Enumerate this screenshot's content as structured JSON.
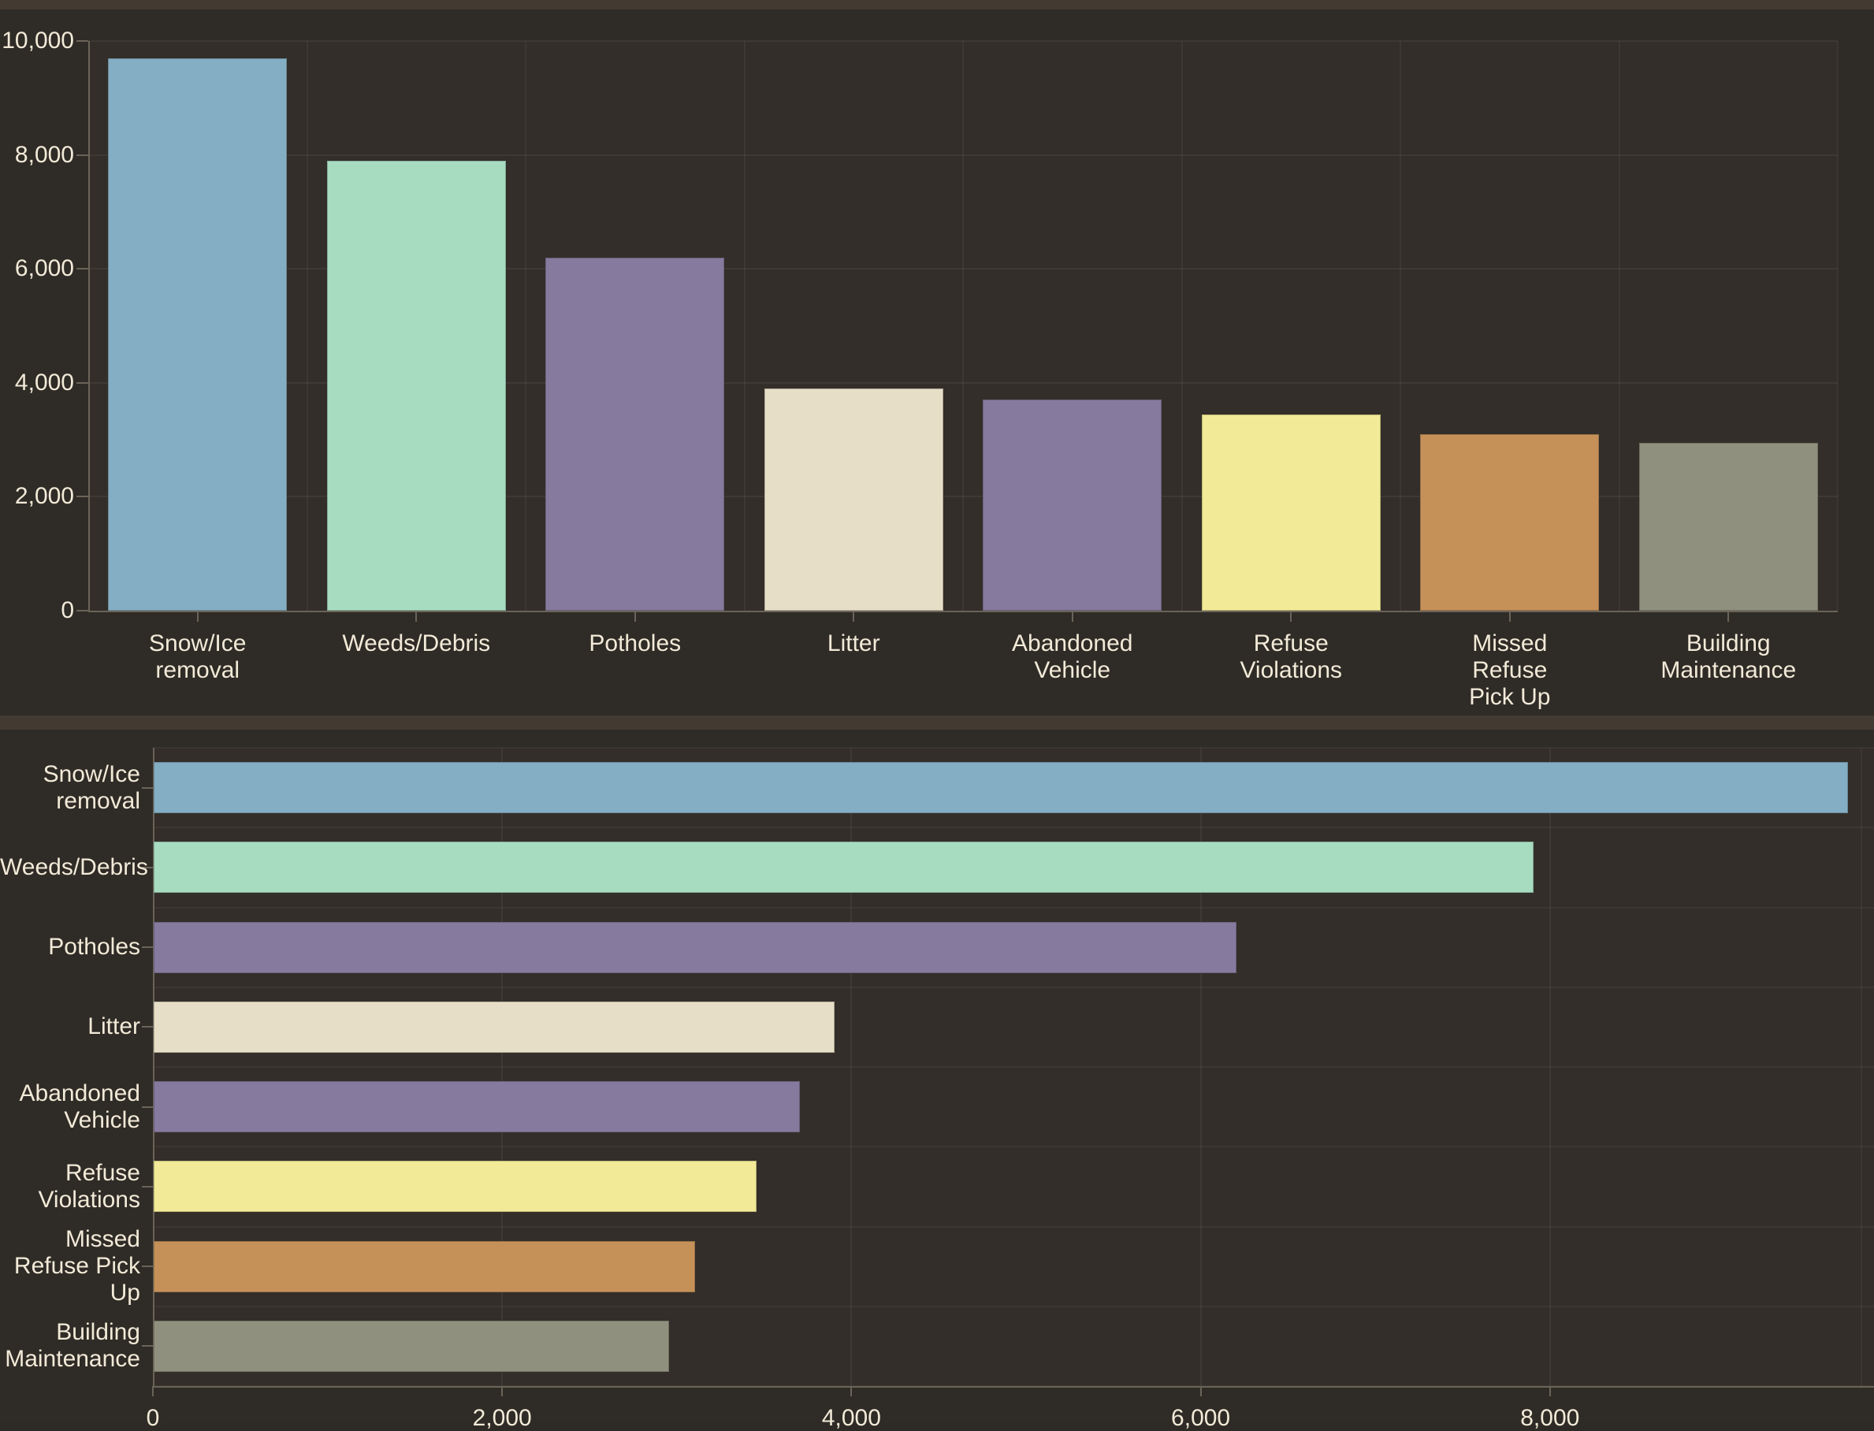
{
  "colors": {
    "page_background": "#2e2a25",
    "panel_background": "#2f2b26",
    "plot_background": "#332e29",
    "divider": "#433a32",
    "axis": "#6a6458",
    "text": "#f2ead8",
    "bar_palette": [
      "#84aec4",
      "#a7dcc1",
      "#867a9e",
      "#e7dec7",
      "#867a9e",
      "#f2ea97",
      "#c69159",
      "#90907f"
    ]
  },
  "chart_data": [
    {
      "type": "bar",
      "orientation": "vertical",
      "title": "",
      "xlabel": "",
      "ylabel": "",
      "categories": [
        "Snow/Ice removal",
        "Weeds/Debris",
        "Potholes",
        "Litter",
        "Abandoned Vehicle",
        "Refuse Violations",
        "Missed Refuse Pick Up",
        "Building Maintenance"
      ],
      "categories_lines": [
        [
          "Snow/Ice",
          "removal"
        ],
        [
          "Weeds/Debris"
        ],
        [
          "Potholes"
        ],
        [
          "Litter"
        ],
        [
          "Abandoned",
          "Vehicle"
        ],
        [
          "Refuse",
          "Violations"
        ],
        [
          "Missed",
          "Refuse",
          "Pick Up"
        ],
        [
          "Building",
          "Maintenance"
        ]
      ],
      "values": [
        9700,
        7900,
        6200,
        3900,
        3700,
        3450,
        3100,
        2950
      ],
      "bar_colors": [
        "#84aec4",
        "#a7dcc1",
        "#867a9e",
        "#e7dec7",
        "#867a9e",
        "#f2ea97",
        "#c69159",
        "#90907f"
      ],
      "y_ticks": [
        "0",
        "2,000",
        "4,000",
        "6,000",
        "8,000",
        "10,000"
      ],
      "y_tick_values": [
        0,
        2000,
        4000,
        6000,
        8000,
        10000
      ],
      "ylim": [
        0,
        10000
      ],
      "grid": true,
      "legend": false
    },
    {
      "type": "bar",
      "orientation": "horizontal",
      "title": "",
      "xlabel": "",
      "ylabel": "",
      "categories": [
        "Snow/Ice removal",
        "Weeds/Debris",
        "Potholes",
        "Litter",
        "Abandoned Vehicle",
        "Refuse Violations",
        "Missed Refuse Pick Up",
        "Building Maintenance"
      ],
      "categories_lines": [
        [
          "Snow/Ice",
          "removal"
        ],
        [
          "Weeds/Debris"
        ],
        [
          "Potholes"
        ],
        [
          "Litter"
        ],
        [
          "Abandoned",
          "Vehicle"
        ],
        [
          "Refuse",
          "Violations"
        ],
        [
          "Missed",
          "Refuse Pick",
          "Up"
        ],
        [
          "Building",
          "Maintenance"
        ]
      ],
      "values": [
        9700,
        7900,
        6200,
        3900,
        3700,
        3450,
        3100,
        2950
      ],
      "bar_colors": [
        "#84aec4",
        "#a7dcc1",
        "#867a9e",
        "#e7dec7",
        "#867a9e",
        "#f2ea97",
        "#c69159",
        "#90907f"
      ],
      "x_ticks": [
        "0",
        "2,000",
        "4,000",
        "6,000",
        "8,000"
      ],
      "x_tick_values": [
        0,
        2000,
        4000,
        6000,
        8000
      ],
      "xlim": [
        0,
        10000
      ],
      "grid": true,
      "legend": false
    }
  ]
}
